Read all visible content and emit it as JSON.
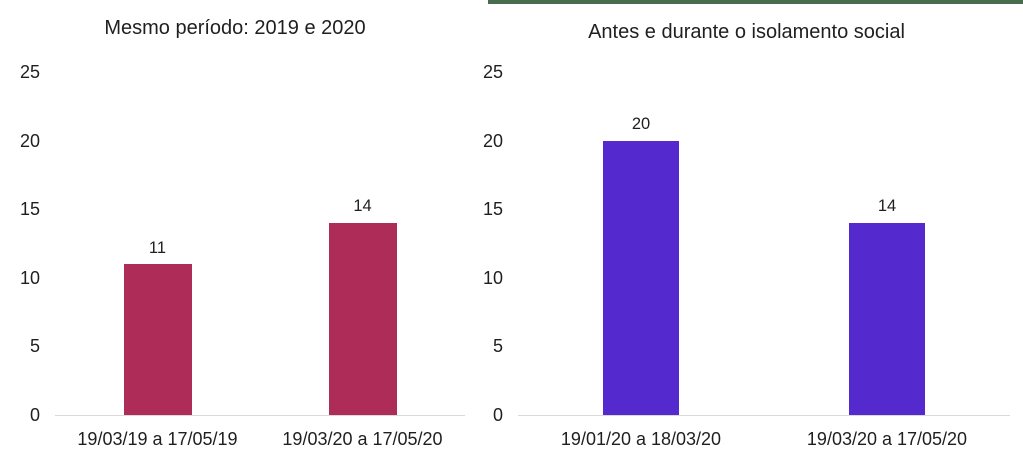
{
  "page": {
    "background": "#ffffff",
    "text_color": "#1f1f1f",
    "axis_line_color": "#d9d9d9"
  },
  "decor": {
    "top_strip_color": "#486c4e"
  },
  "chart_data": [
    {
      "type": "bar",
      "title": "Mesmo período: 2019 e 2020",
      "categories": [
        "19/03/19 a 17/05/19",
        "19/03/20 a 17/05/20"
      ],
      "values": [
        11,
        14
      ],
      "data_labels": [
        11,
        14
      ],
      "bar_color": "#ae2c58",
      "ylim": [
        0,
        25
      ],
      "yticks": [
        0,
        5,
        10,
        15,
        20,
        25
      ],
      "xlabel": "",
      "ylabel": "",
      "grid": false,
      "legend": "none"
    },
    {
      "type": "bar",
      "title": "Antes e durante o isolamento social",
      "categories": [
        "19/01/20 a 18/03/20",
        "19/03/20 a 17/05/20"
      ],
      "values": [
        20,
        14
      ],
      "data_labels": [
        20,
        14
      ],
      "bar_color": "#5429ce",
      "ylim": [
        0,
        25
      ],
      "yticks": [
        0,
        5,
        10,
        15,
        20,
        25
      ],
      "xlabel": "",
      "ylabel": "",
      "grid": false,
      "legend": "none"
    }
  ]
}
